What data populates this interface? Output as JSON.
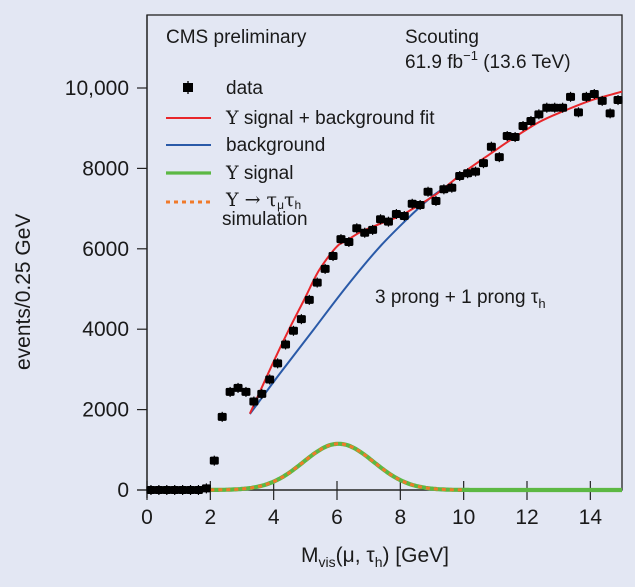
{
  "chart_data": {
    "type": "scatter",
    "title": "",
    "header": {
      "left": "CMS preliminary",
      "right_line1": "Scouting",
      "lumi_value": "61.9 fb",
      "lumi_exp": "−1",
      "lumi_energy": " (13.6 TeV)"
    },
    "annotation": {
      "main": "3 prong + 1 prong τ",
      "sub": "h"
    },
    "xlabel": {
      "main": "M",
      "sub": "vis",
      "rest1": "(μ, τ",
      "sub2": "h",
      "rest2": ") [GeV]"
    },
    "ylabel": "events/0.25 GeV",
    "xlim": [
      0,
      15
    ],
    "ylim": [
      0,
      10000
    ],
    "xticks": [
      0,
      2,
      4,
      6,
      8,
      10,
      12,
      14
    ],
    "xtick_labels": [
      "0",
      "2",
      "4",
      "6",
      "8",
      "10",
      "12",
      "14"
    ],
    "yticks": [
      0,
      2000,
      4000,
      6000,
      8000,
      10000
    ],
    "ytick_labels": [
      "0",
      "2000",
      "4000",
      "6000",
      "8000",
      "10,000"
    ],
    "grid": false,
    "legend_position": "top-left",
    "legend": [
      {
        "label": "data",
        "marker": "square-errorbar",
        "color": "#000000"
      },
      {
        "label_symbol": "Υ",
        "label": " signal + background fit",
        "line": "solid",
        "color": "#e8262a"
      },
      {
        "label": "background",
        "line": "solid",
        "color": "#2a5aa8"
      },
      {
        "label_symbol": "Υ",
        "label": " signal",
        "line": "solid-thick",
        "color": "#5cb843"
      },
      {
        "label_symbol": "Υ → τ",
        "label_sub1": "μ",
        "label_mid": "τ",
        "label_sub2": "h",
        "label_line2": "simulation",
        "line": "dotted",
        "color": "#f07a2a"
      }
    ],
    "series": [
      {
        "name": "data",
        "kind": "points",
        "color": "#000000",
        "x": [
          0.125,
          0.375,
          0.625,
          0.875,
          1.125,
          1.375,
          1.625,
          1.875,
          2.125,
          2.375,
          2.625,
          2.875,
          3.125,
          3.375,
          3.625,
          3.875,
          4.125,
          4.375,
          4.625,
          4.875,
          5.125,
          5.375,
          5.625,
          5.875,
          6.125,
          6.375,
          6.625,
          6.875,
          7.125,
          7.375,
          7.625,
          7.875,
          8.125,
          8.375,
          8.625,
          8.875,
          9.125,
          9.375,
          9.625,
          9.875,
          10.125,
          10.375,
          10.625,
          10.875,
          11.125,
          11.375,
          11.625,
          11.875,
          12.125,
          12.375,
          12.625,
          12.875,
          13.125,
          13.375,
          13.625,
          13.875,
          14.125,
          14.375,
          14.625,
          14.875
        ],
        "y": [
          0,
          0,
          0,
          0,
          0,
          0,
          0,
          40,
          730,
          1820,
          2440,
          2540,
          2440,
          2200,
          2390,
          2750,
          3150,
          3620,
          3960,
          4250,
          4730,
          5160,
          5500,
          5820,
          6240,
          6170,
          6510,
          6400,
          6470,
          6735,
          6675,
          6865,
          6815,
          7120,
          7090,
          7420,
          7190,
          7480,
          7520,
          7810,
          7880,
          7920,
          8130,
          8540,
          8280,
          8805,
          8780,
          9055,
          9180,
          9345,
          9510,
          9510,
          9510,
          9780,
          9395,
          9780,
          9850,
          9680,
          9370,
          9700
        ]
      },
      {
        "name": "Υ signal + background fit",
        "kind": "line",
        "color": "#e8262a",
        "x": [
          3.25,
          3.5,
          4.0,
          4.5,
          5.0,
          5.25,
          5.5,
          6.0,
          6.3,
          6.75,
          7.35,
          8.0,
          8.4,
          9.0,
          9.24,
          10.0,
          10.82,
          11.5,
          12.4,
          13.2,
          13.97,
          14.5,
          15.0
        ],
        "y": [
          1900,
          2330,
          3200,
          4020,
          4790,
          5200,
          5550,
          6060,
          6200,
          6420,
          6620,
          6820,
          7000,
          7290,
          7420,
          7900,
          8350,
          8720,
          9160,
          9440,
          9680,
          9800,
          9910
        ]
      },
      {
        "name": "background",
        "kind": "line",
        "color": "#2a5aa8",
        "x": [
          3.25,
          4.2,
          5.25,
          6.3,
          7.35,
          8.4,
          9.0,
          9.45
        ],
        "y": [
          1890,
          2900,
          3980,
          5060,
          6050,
          6880,
          7300,
          7545
        ]
      },
      {
        "name": "Υ signal",
        "kind": "gaussian",
        "color": "#5cb843",
        "amplitude": 1150,
        "mean": 6.05,
        "sigma": 1.11,
        "x_range": [
          2.0,
          15.0
        ]
      },
      {
        "name": "Υ → τμτh simulation",
        "kind": "gaussian",
        "color": "#f07a2a",
        "amplitude": 1150,
        "mean": 6.05,
        "sigma": 1.11,
        "x_range": [
          2.0,
          10.0
        ]
      }
    ]
  }
}
